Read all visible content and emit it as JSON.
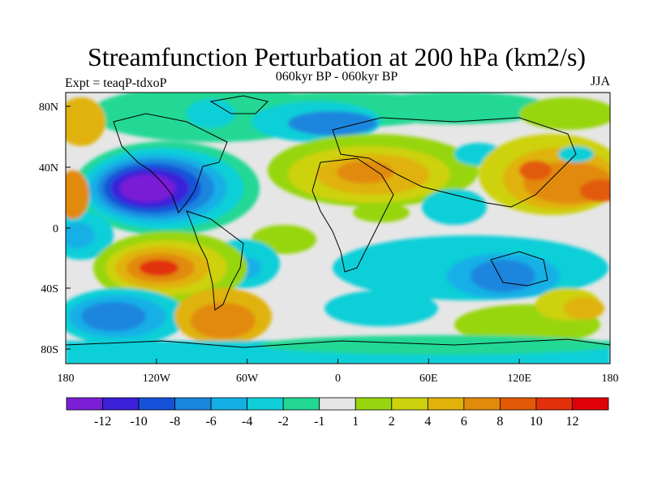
{
  "title": "Streamfunction Perturbation at 200 hPa (km2/s)",
  "subtitle": "060kyr BP - 060kyr BP",
  "left_label": "Expt = teaqP-tdxoP",
  "right_label": "JJA",
  "map": {
    "lat_ticks": [
      "80N",
      "40N",
      "0",
      "40S",
      "80S"
    ],
    "lon_ticks": [
      "180",
      "120W",
      "60W",
      "0",
      "60E",
      "120E",
      "180"
    ]
  },
  "colorbar": {
    "labels": [
      "-12",
      "-10",
      "-8",
      "-6",
      "-4",
      "-2",
      "-1",
      "1",
      "2",
      "4",
      "6",
      "8",
      "10",
      "12"
    ],
    "colors": [
      "#7a1fd6",
      "#3a20d8",
      "#1652d9",
      "#1a86de",
      "#13b0e6",
      "#10cfd8",
      "#22d894",
      "#e6e6e6",
      "#97d60e",
      "#cdd20c",
      "#e0b20a",
      "#e28a0a",
      "#e25a08",
      "#e2300a",
      "#e0000a"
    ]
  }
}
